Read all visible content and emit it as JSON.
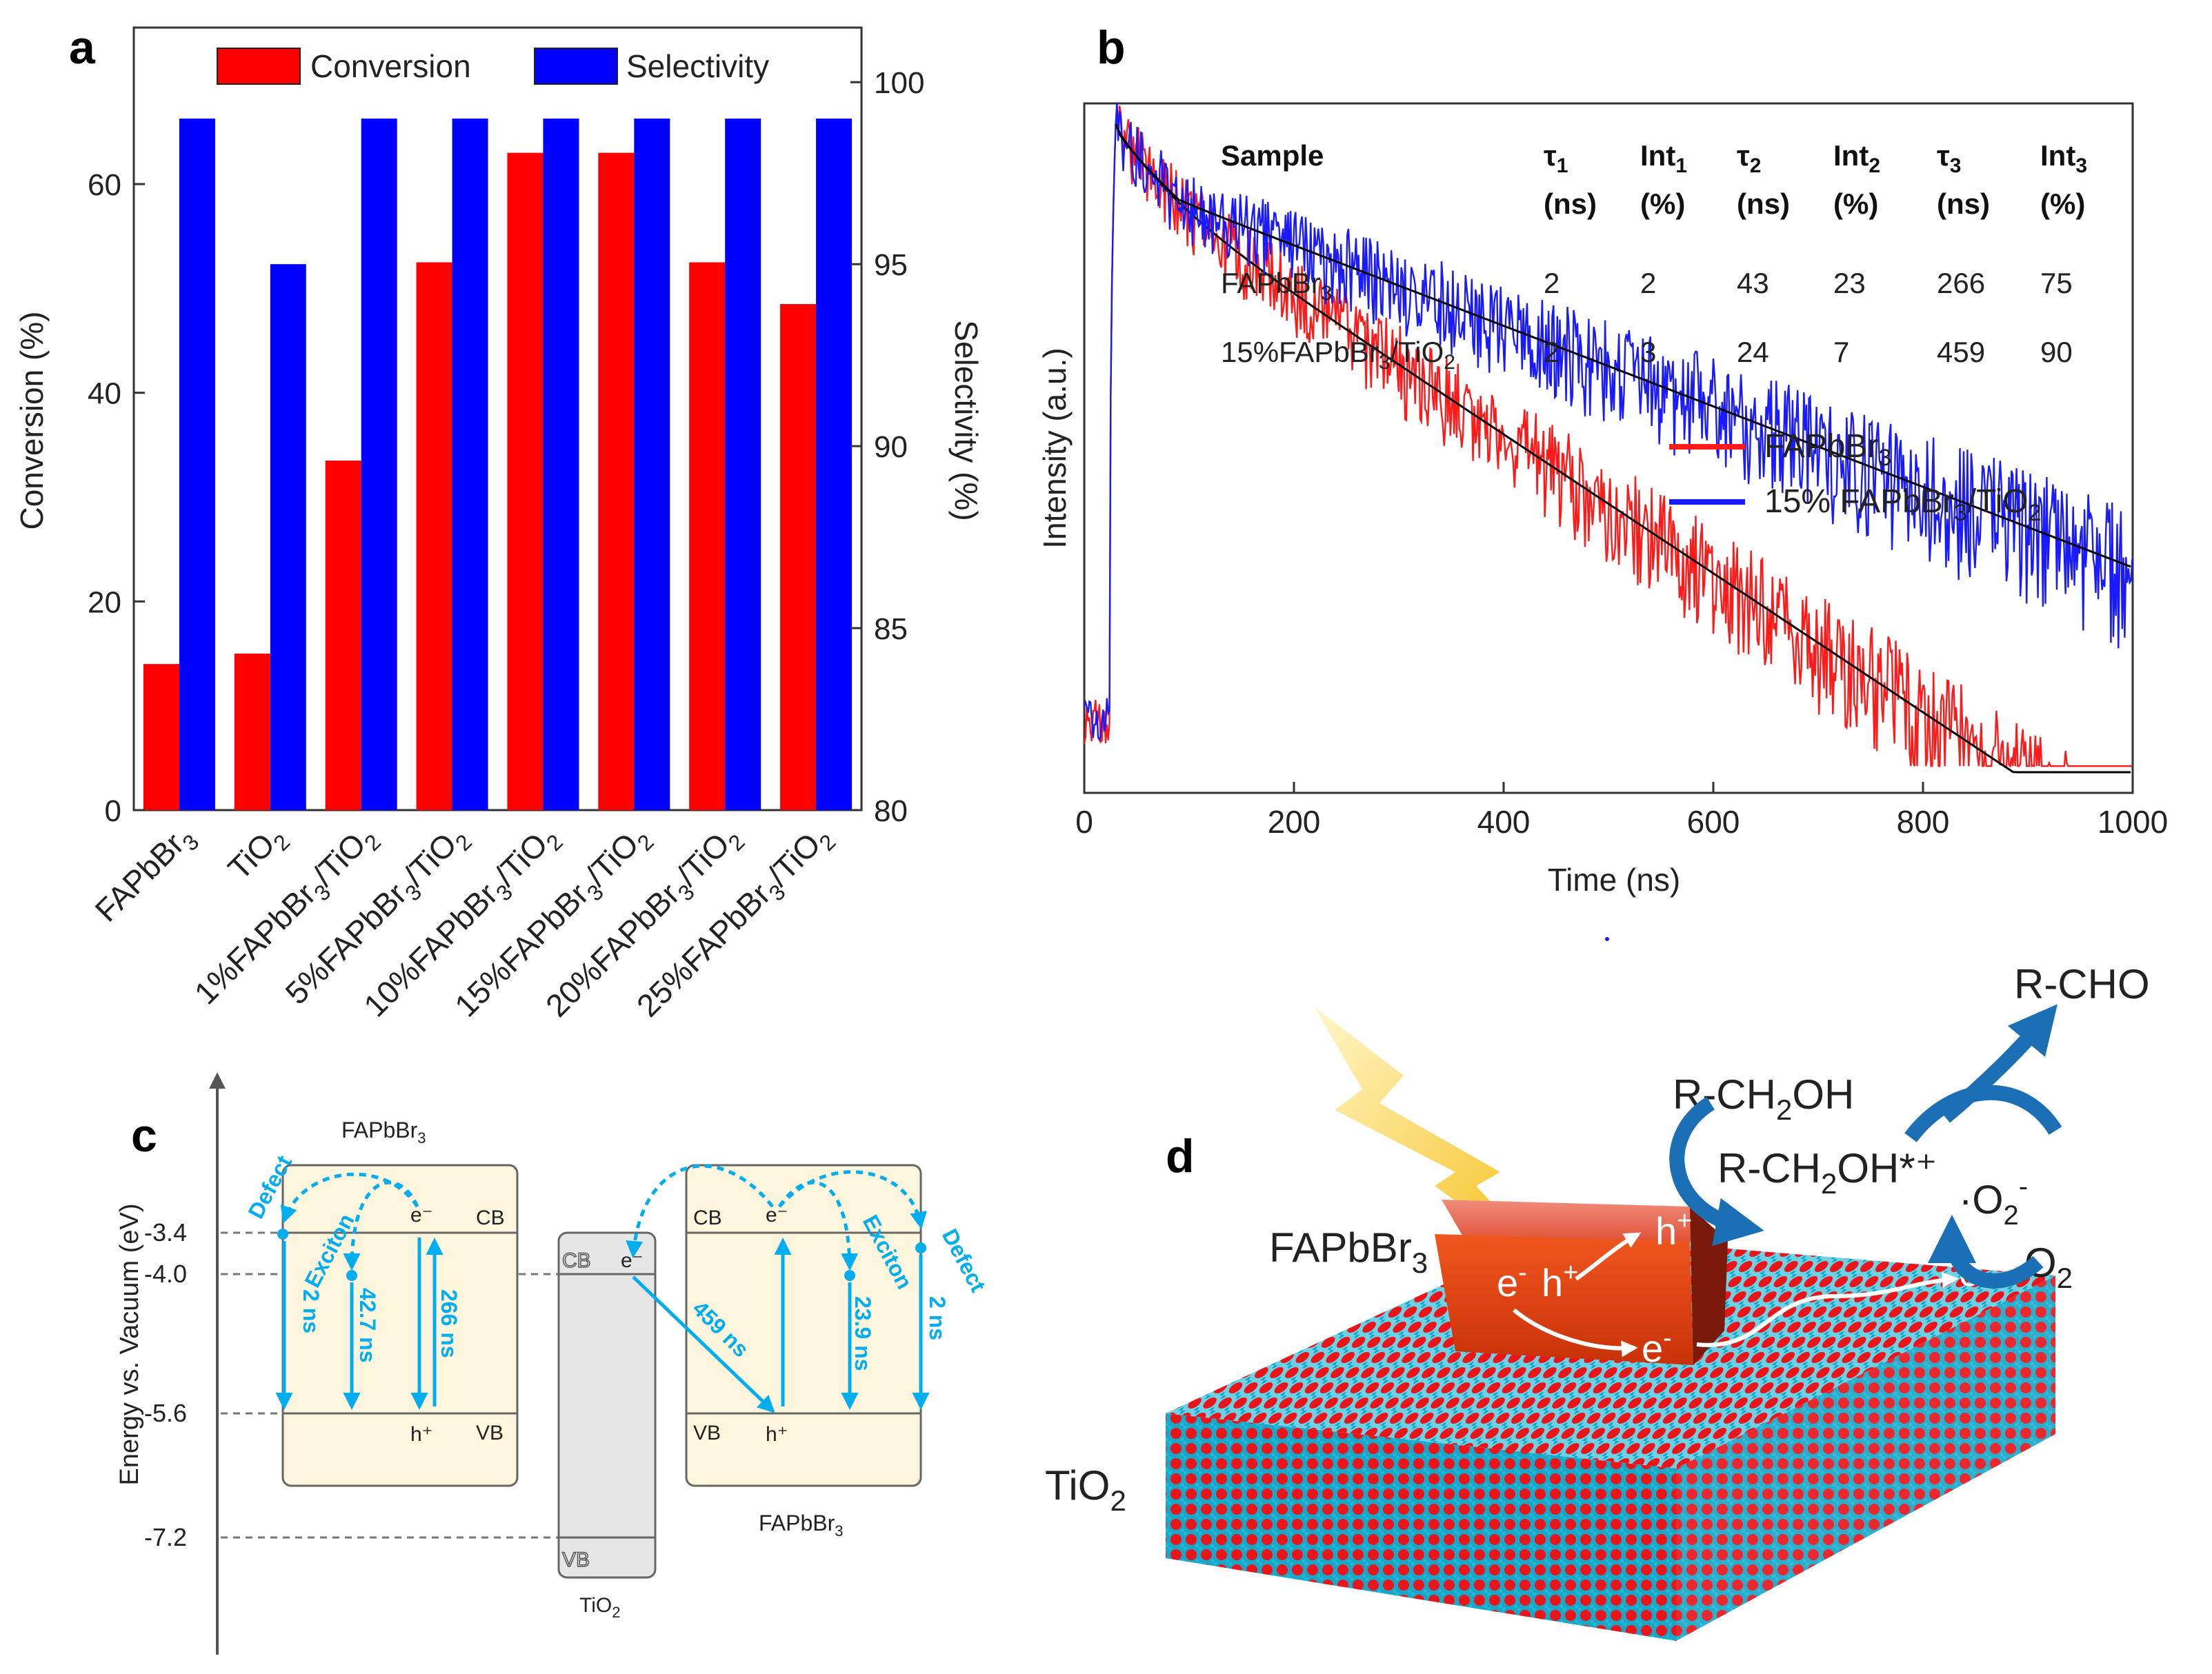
{
  "colors": {
    "conversion": "#ff0000",
    "selectivity": "#0000ff",
    "fapbbr3_decay": "#ff1a1a",
    "composite_decay": "#1a1aff",
    "fit": "#000000",
    "arrow": "#00aeef",
    "band_box": "#fdf6dc",
    "tio2_box": "#e6e6e6",
    "perovskite": "#e8441a",
    "tio2_O": "#e8151b",
    "tio2_Ti": "#12a7c9",
    "flow_arrow": "#1b6fb5"
  },
  "panel_a": {
    "label": "a",
    "legend_conversion": "Conversion",
    "legend_selectivity": "Selectivity",
    "categories": [
      {
        "pre": "FAPbBr",
        "sub": "3",
        "post": "",
        "sub2": ""
      },
      {
        "pre": "TiO",
        "sub": "2",
        "post": "",
        "sub2": ""
      },
      {
        "pre": "1%FAPbBr",
        "sub": "3",
        "post": "/TiO",
        "sub2": "2"
      },
      {
        "pre": "5%FAPbBr",
        "sub": "3",
        "post": "/TiO",
        "sub2": "2"
      },
      {
        "pre": "10%FAPbBr",
        "sub": "3",
        "post": "/TiO",
        "sub2": "2"
      },
      {
        "pre": "15%FAPbBr",
        "sub": "3",
        "post": "/TiO",
        "sub2": "2"
      },
      {
        "pre": "20%FAPbBr",
        "sub": "3",
        "post": "/TiO",
        "sub2": "2"
      },
      {
        "pre": "25%FAPbBr",
        "sub": "3",
        "post": "/TiO",
        "sub2": "2"
      }
    ],
    "left_ticks": [
      "0",
      "20",
      "40",
      "60"
    ],
    "right_ticks": [
      "80",
      "85",
      "90",
      "95",
      "100"
    ]
  },
  "panel_b": {
    "label": "b",
    "table_headers": [
      {
        "main": "Sample",
        "sub": ""
      },
      {
        "main": "τ",
        "sub": "1"
      },
      {
        "main": "Int",
        "sub": "1"
      },
      {
        "main": "τ",
        "sub": "2"
      },
      {
        "main": "Int",
        "sub": "2"
      },
      {
        "main": "τ",
        "sub": "3"
      },
      {
        "main": "Int",
        "sub": "3"
      }
    ],
    "table_units": [
      "",
      "(ns)",
      "(%)",
      "(ns)",
      "(%)",
      "(ns)",
      "(%)"
    ],
    "rows": [
      {
        "sample_pre": "FAPbBr",
        "sample_sub": "3",
        "sample_post": "",
        "sample_sub2": "",
        "values": [
          "2",
          "2",
          "43",
          "23",
          "266",
          "75"
        ]
      },
      {
        "sample_pre": "15%FAPbBr",
        "sample_sub": "3",
        "sample_post": "/TiO",
        "sample_sub2": "2",
        "values": [
          "2",
          "3",
          "24",
          "7",
          "459",
          "90"
        ]
      }
    ],
    "legend_red_pre": "FAPbBr",
    "legend_red_sub": "3",
    "legend_blue_pre": "15% FAPbBr",
    "legend_blue_sub": "3",
    "legend_blue_mid": "/TiO",
    "legend_blue_sub2": "2",
    "x_ticks": [
      "0",
      "200",
      "400",
      "600",
      "800",
      "1000"
    ]
  },
  "panel_c": {
    "label": "c",
    "y_axis_label": "Energy vs. Vacuum (eV)",
    "levels": [
      "-3.4",
      "-4.0",
      "-5.6",
      "-7.2"
    ],
    "left_title_pre": "FAPbBr",
    "left_title_sub": "3",
    "right_title_pre": "FAPbBr",
    "right_title_sub": "3",
    "tio2_pre": "TiO",
    "tio2_sub": "2",
    "cb": "CB",
    "vb": "VB",
    "electron": "e⁻",
    "hole": "h⁺",
    "defect": "Defect",
    "exciton": "Exciton",
    "t_2ns": "2 ns",
    "t_42": "42.7 ns",
    "t_266": "266 ns",
    "t_459": "459 ns",
    "t_23": "23.9 ns"
  },
  "panel_d": {
    "label": "d",
    "fapbbr3_pre": "FAPbBr",
    "fapbbr3_sub": "3",
    "tio2_pre": "TiO",
    "tio2_sub": "2",
    "rch2oh_pre": "R-CH",
    "rch2oh_sub": "2",
    "rch2oh_post": "OH",
    "radical_pre": "R-CH",
    "radical_sub": "2",
    "radical_post": "OH*⁺",
    "rcho": "R-CHO",
    "superoxide_pre": "·O",
    "superoxide_sub": "2",
    "superoxide_sup": "-",
    "o2_pre": "O",
    "o2_sub": "2",
    "e": "e",
    "h": "h",
    "minus": "-",
    "plus": "+"
  },
  "chart_data": [
    {
      "type": "bar",
      "title": "",
      "categories": [
        "FAPbBr3",
        "TiO2",
        "1%FAPbBr3/TiO2",
        "5%FAPbBr3/TiO2",
        "10%FAPbBr3/TiO2",
        "15%FAPbBr3/TiO2",
        "20%FAPbBr3/TiO2",
        "25%FAPbBr3/TiO2"
      ],
      "series": [
        {
          "name": "Conversion",
          "axis": "left",
          "values": [
            14,
            15,
            33.5,
            52.5,
            63,
            63,
            52.5,
            48.5
          ]
        },
        {
          "name": "Selectivity",
          "axis": "right",
          "values": [
            99,
            95,
            99,
            99,
            99,
            99,
            99,
            99
          ]
        }
      ],
      "ylabel": "Conversion (%)",
      "ylim": [
        0,
        75
      ],
      "y2label": "Selectivity (%)",
      "y2lim": [
        80,
        101.5
      ]
    },
    {
      "type": "line",
      "title": "",
      "xlabel": "Time (ns)",
      "ylabel": "Intensity (a.u.)",
      "xlim": [
        0,
        1000
      ],
      "series": [
        {
          "name": "FAPbBr3",
          "tau_ns": [
            2,
            43,
            266
          ],
          "amplitude_fraction": [
            0.02,
            0.23,
            0.75
          ]
        },
        {
          "name": "15% FAPbBr3/TiO2",
          "tau_ns": [
            2,
            24,
            459
          ],
          "amplitude_fraction": [
            0.03,
            0.07,
            0.9
          ]
        }
      ]
    }
  ]
}
